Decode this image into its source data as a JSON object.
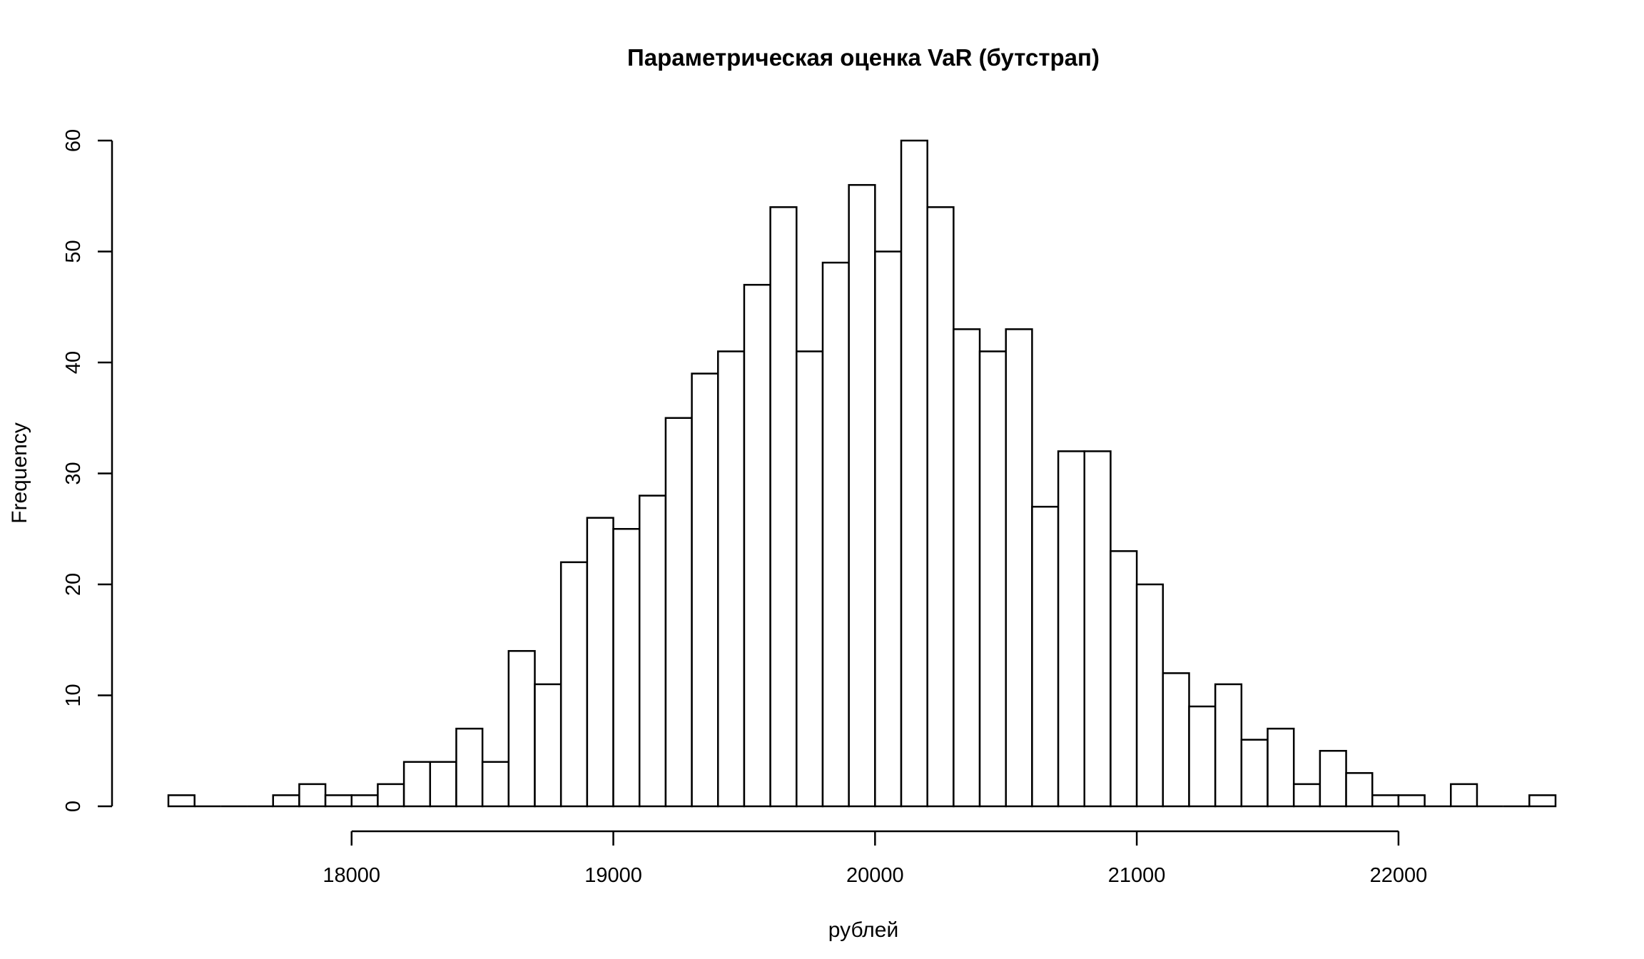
{
  "chart_data": {
    "type": "bar",
    "subtype": "histogram",
    "title": "Параметрическая оценка VaR (бутстрап)",
    "xlabel": "рублей",
    "ylabel": "Frequency",
    "bin_width": 100,
    "bin_starts": [
      17300,
      17400,
      17500,
      17600,
      17700,
      17800,
      17900,
      18000,
      18100,
      18200,
      18300,
      18400,
      18500,
      18600,
      18700,
      18800,
      18900,
      19000,
      19100,
      19200,
      19300,
      19400,
      19500,
      19600,
      19700,
      19800,
      19900,
      20000,
      20100,
      20200,
      20300,
      20400,
      20500,
      20600,
      20700,
      20800,
      20900,
      21000,
      21100,
      21200,
      21300,
      21400,
      21500,
      21600,
      21700,
      21800,
      21900,
      22000,
      22100,
      22200,
      22300,
      22400,
      22500
    ],
    "values": [
      1,
      0,
      0,
      0,
      1,
      2,
      1,
      1,
      2,
      4,
      4,
      7,
      4,
      14,
      11,
      22,
      26,
      25,
      28,
      35,
      39,
      41,
      47,
      54,
      41,
      49,
      56,
      50,
      60,
      54,
      43,
      41,
      43,
      27,
      32,
      32,
      23,
      20,
      12,
      9,
      11,
      6,
      7,
      2,
      5,
      3,
      1,
      1,
      0,
      2,
      0,
      0,
      1
    ],
    "xlim": [
      17300,
      22600
    ],
    "ylim": [
      0,
      60
    ],
    "x_ticks": [
      "18000",
      "19000",
      "20000",
      "21000",
      "22000"
    ],
    "y_ticks": [
      "0",
      "10",
      "20",
      "30",
      "40",
      "50",
      "60"
    ],
    "grid": false,
    "legend": "none",
    "bar_fill": "#ffffff",
    "bar_stroke": "#000000"
  }
}
